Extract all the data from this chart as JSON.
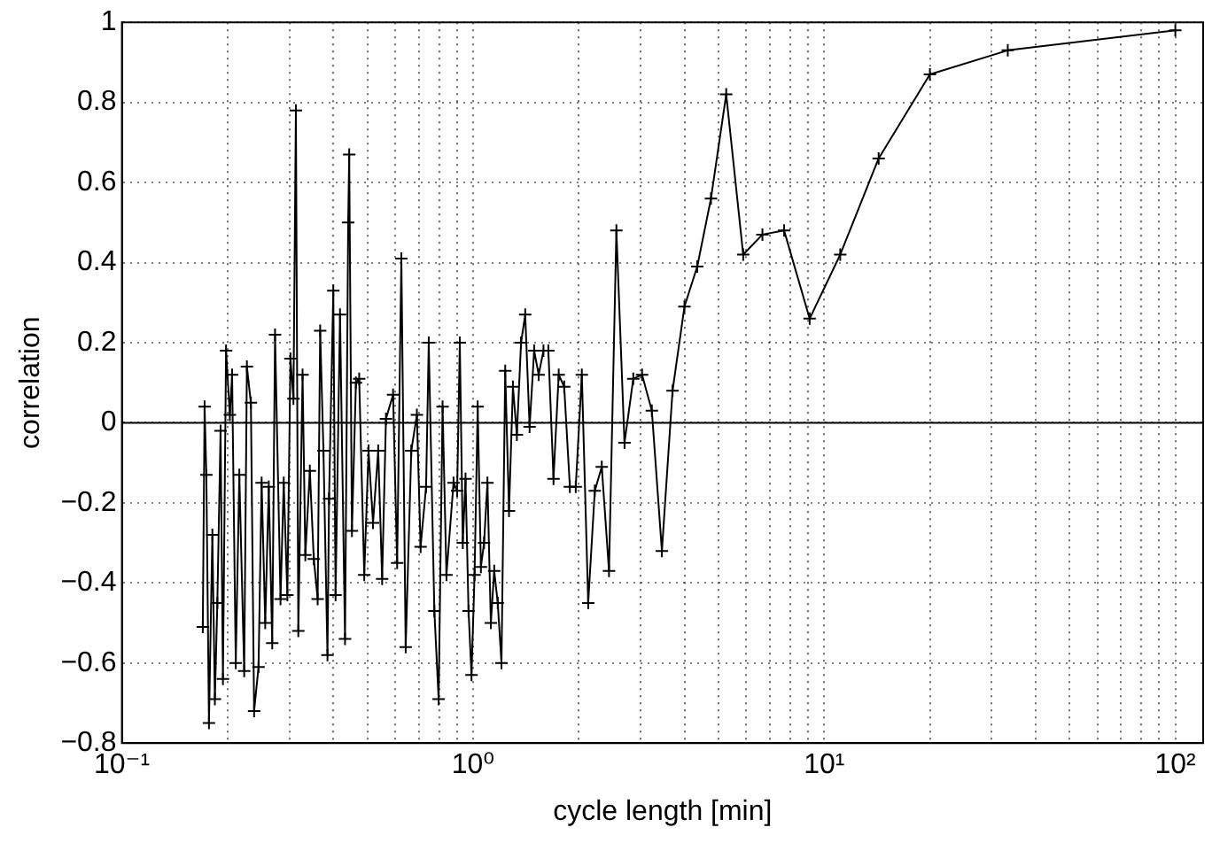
{
  "chart_data": {
    "type": "line",
    "xlabel": "cycle length [min]",
    "ylabel": "correlation",
    "log": "x",
    "grid": true,
    "marker": "cross",
    "line_style": "solid",
    "legend": false,
    "xlim": [
      0.1,
      120
    ],
    "ylim": [
      -0.8,
      1
    ],
    "xticks": [
      {
        "value": 0.1,
        "label": "10⁻¹"
      },
      {
        "value": 0.2,
        "label": null
      },
      {
        "value": 0.3,
        "label": null
      },
      {
        "value": 0.4,
        "label": null
      },
      {
        "value": 0.5,
        "label": null
      },
      {
        "value": 0.6,
        "label": null
      },
      {
        "value": 0.7,
        "label": null
      },
      {
        "value": 0.8,
        "label": null
      },
      {
        "value": 0.9,
        "label": null
      },
      {
        "value": 1,
        "label": "10⁰"
      },
      {
        "value": 2,
        "label": null
      },
      {
        "value": 3,
        "label": null
      },
      {
        "value": 4,
        "label": null
      },
      {
        "value": 5,
        "label": null
      },
      {
        "value": 6,
        "label": null
      },
      {
        "value": 7,
        "label": null
      },
      {
        "value": 8,
        "label": null
      },
      {
        "value": 9,
        "label": null
      },
      {
        "value": 10,
        "label": "10¹"
      },
      {
        "value": 20,
        "label": null
      },
      {
        "value": 30,
        "label": null
      },
      {
        "value": 40,
        "label": null
      },
      {
        "value": 50,
        "label": null
      },
      {
        "value": 60,
        "label": null
      },
      {
        "value": 70,
        "label": null
      },
      {
        "value": 80,
        "label": null
      },
      {
        "value": 90,
        "label": null
      },
      {
        "value": 100,
        "label": "10²"
      }
    ],
    "yticks": [
      -0.8,
      -0.6,
      -0.4,
      -0.2,
      0,
      0.2,
      0.4,
      0.6,
      0.8,
      1
    ],
    "ref_lines": [
      {
        "axis": "y",
        "value": 0,
        "color": "#000000"
      }
    ],
    "series": [
      {
        "color": "#000000",
        "x": [
          0.17,
          0.172,
          0.174,
          0.177,
          0.181,
          0.184,
          0.187,
          0.191,
          0.194,
          0.198,
          0.203,
          0.206,
          0.211,
          0.216,
          0.223,
          0.227,
          0.233,
          0.238,
          0.245,
          0.25,
          0.256,
          0.262,
          0.268,
          0.273,
          0.283,
          0.289,
          0.296,
          0.302,
          0.308,
          0.313,
          0.318,
          0.327,
          0.333,
          0.343,
          0.352,
          0.361,
          0.367,
          0.375,
          0.385,
          0.389,
          0.4,
          0.406,
          0.418,
          0.432,
          0.441,
          0.444,
          0.452,
          0.464,
          0.474,
          0.49,
          0.504,
          0.519,
          0.537,
          0.551,
          0.565,
          0.592,
          0.608,
          0.625,
          0.643,
          0.667,
          0.692,
          0.709,
          0.735,
          0.748,
          0.776,
          0.798,
          0.819,
          0.84,
          0.88,
          0.901,
          0.917,
          0.935,
          0.952,
          0.971,
          0.99,
          1.01,
          1.031,
          1.053,
          1.075,
          1.099,
          1.124,
          1.149,
          1.176,
          1.205,
          1.235,
          1.266,
          1.299,
          1.333,
          1.37,
          1.408,
          1.449,
          1.493,
          1.538,
          1.587,
          1.639,
          1.695,
          1.754,
          1.818,
          1.887,
          1.961,
          2.041,
          2.128,
          2.222,
          2.326,
          2.439,
          2.56,
          2.7,
          2.86,
          3.03,
          3.23,
          3.45,
          3.7,
          4.0,
          4.35,
          4.76,
          5.26,
          5.88,
          6.67,
          7.69,
          9.09,
          11.11,
          14.29,
          20,
          33.33,
          100
        ],
        "values": [
          -0.51,
          0.04,
          -0.13,
          -0.75,
          -0.28,
          -0.69,
          -0.45,
          -0.02,
          -0.64,
          0.18,
          0.02,
          0.12,
          -0.6,
          -0.13,
          -0.62,
          0.14,
          0.05,
          -0.72,
          -0.61,
          -0.15,
          -0.5,
          -0.16,
          -0.55,
          0.22,
          -0.44,
          -0.15,
          -0.43,
          0.16,
          0.06,
          0.78,
          -0.52,
          0.12,
          -0.33,
          -0.12,
          -0.34,
          -0.44,
          0.23,
          -0.07,
          -0.58,
          -0.19,
          0.33,
          -0.43,
          0.27,
          -0.54,
          0.5,
          0.67,
          -0.27,
          0.1,
          0.11,
          -0.38,
          -0.07,
          -0.25,
          -0.07,
          -0.39,
          0.01,
          0.07,
          -0.35,
          0.41,
          -0.56,
          -0.07,
          0.02,
          -0.31,
          -0.16,
          0.2,
          -0.47,
          -0.69,
          0.04,
          -0.38,
          -0.15,
          -0.17,
          0.2,
          -0.3,
          -0.14,
          -0.47,
          -0.63,
          -0.38,
          0.04,
          -0.36,
          -0.3,
          -0.15,
          -0.5,
          -0.37,
          -0.45,
          -0.6,
          0.13,
          -0.22,
          0.09,
          -0.03,
          0.2,
          0.27,
          -0.01,
          0.18,
          0.12,
          0.18,
          0.18,
          -0.14,
          0.12,
          0.09,
          -0.16,
          -0.16,
          0.12,
          -0.45,
          -0.17,
          -0.11,
          -0.37,
          0.48,
          -0.05,
          0.11,
          0.12,
          0.03,
          -0.32,
          0.08,
          0.29,
          0.39,
          0.56,
          0.82,
          0.42,
          0.47,
          0.48,
          0.26,
          0.42,
          0.66,
          0.87,
          0.93,
          0.98
        ]
      }
    ]
  }
}
